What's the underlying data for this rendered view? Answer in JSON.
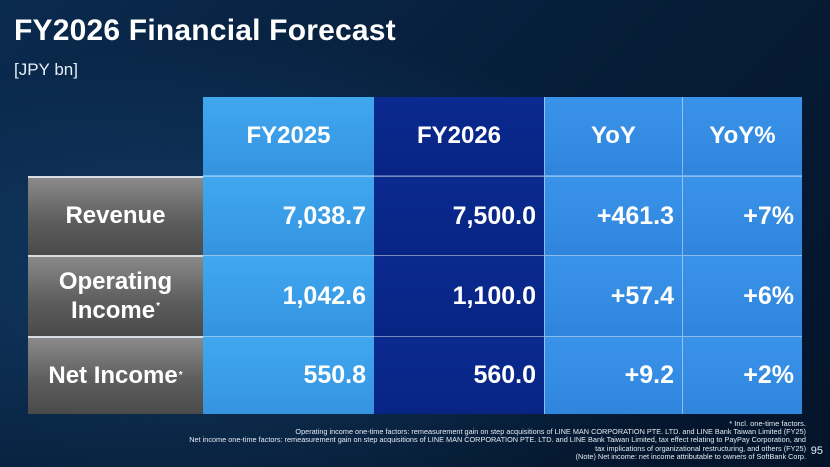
{
  "title": "FY2026 Financial Forecast",
  "unit": "[JPY bn]",
  "table": {
    "columns": [
      "FY2025",
      "FY2026",
      "YoY",
      "YoY%"
    ],
    "rows": [
      {
        "label": "Revenue",
        "marker": "",
        "values": [
          "7,038.7",
          "7,500.0",
          "+461.3",
          "+7%"
        ]
      },
      {
        "label_line1": "Operating",
        "label_line2": "Income",
        "marker": "*",
        "values": [
          "1,042.6",
          "1,100.0",
          "+57.4",
          "+6%"
        ]
      },
      {
        "label": "Net Income",
        "marker": "*",
        "values": [
          "550.8",
          "560.0",
          "+9.2",
          "+2%"
        ]
      }
    ]
  },
  "footnotes": {
    "incl": "* Incl. one-time factors.",
    "operating": "Operating income one-time factors: remeasurement gain on step acquisitions of LINE MAN CORPORATION PTE. LTD. and LINE Bank Taiwan Limited (FY25)",
    "net_line1": "Net income one-time factors: remeasurement gain on step acquisitions of LINE MAN CORPORATION PTE. LTD. and LINE Bank Taiwan Limited, tax effect relating to PayPay Corporation, and",
    "net_line2": "tax implications of organizational restructuring, and others (FY25)",
    "note": "(Note) Net income: net income attributable to owners of SoftBank Corp."
  },
  "page_number": "95",
  "colors": {
    "background": "#071e3a",
    "light_blue_cell": "#3a9fea",
    "dark_blue_cell": "#0a2a8a",
    "label_gray": "#6a6a6a",
    "text": "#ffffff"
  }
}
